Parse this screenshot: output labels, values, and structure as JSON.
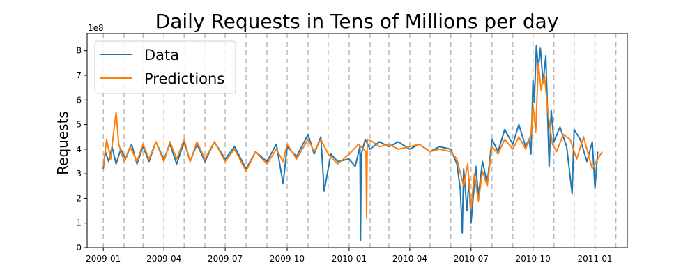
{
  "chart_data": {
    "type": "line",
    "title": "Daily Requests in Tens of Millions per day",
    "xlabel": "",
    "ylabel": "Requests",
    "y_offset_label": "1e8",
    "y_scale": 100000000,
    "xlim": [
      "2008-12-08",
      "2011-02-18"
    ],
    "ylim": [
      0,
      8.7
    ],
    "x_ticks": [
      "2009-01",
      "2009-04",
      "2009-07",
      "2009-10",
      "2010-01",
      "2010-04",
      "2010-07",
      "2010-10",
      "2011-01"
    ],
    "y_ticks": [
      0,
      1,
      2,
      3,
      4,
      5,
      6,
      7,
      8
    ],
    "grid": false,
    "month_markers": [
      "2009-01-01",
      "2009-02-01",
      "2009-03-01",
      "2009-04-01",
      "2009-05-01",
      "2009-06-01",
      "2009-07-01",
      "2009-08-01",
      "2009-09-01",
      "2009-10-01",
      "2009-11-01",
      "2009-12-01",
      "2010-01-01",
      "2010-02-01",
      "2010-03-01",
      "2010-04-01",
      "2010-05-01",
      "2010-06-01",
      "2010-07-01",
      "2010-08-01",
      "2010-09-01",
      "2010-10-01",
      "2010-11-01",
      "2010-12-01",
      "2011-01-01",
      "2011-02-01"
    ],
    "legend": {
      "placement": "top-left",
      "entries": [
        "Data",
        "Predictions"
      ]
    },
    "colors": {
      "Data": "#1f77b4",
      "Predictions": "#ff7f0e",
      "markers": "#bbbbbb"
    },
    "series": [
      {
        "name": "Data",
        "x": [
          "2009-01-01",
          "2009-01-04",
          "2009-01-09",
          "2009-01-14",
          "2009-01-20",
          "2009-01-27",
          "2009-02-03",
          "2009-02-12",
          "2009-02-20",
          "2009-03-01",
          "2009-03-10",
          "2009-03-20",
          "2009-04-01",
          "2009-04-10",
          "2009-04-20",
          "2009-05-01",
          "2009-05-10",
          "2009-05-20",
          "2009-06-01",
          "2009-06-15",
          "2009-07-01",
          "2009-07-15",
          "2009-08-01",
          "2009-08-15",
          "2009-09-01",
          "2009-09-15",
          "2009-09-25",
          "2009-10-01",
          "2009-10-15",
          "2009-11-01",
          "2009-11-10",
          "2009-11-20",
          "2009-11-25",
          "2009-12-05",
          "2009-12-15",
          "2010-01-01",
          "2010-01-10",
          "2010-01-17",
          "2010-01-18",
          "2010-01-19",
          "2010-01-25",
          "2010-02-01",
          "2010-02-15",
          "2010-03-01",
          "2010-03-15",
          "2010-04-01",
          "2010-04-15",
          "2010-05-01",
          "2010-05-15",
          "2010-06-01",
          "2010-06-10",
          "2010-06-15",
          "2010-06-18",
          "2010-06-20",
          "2010-06-25",
          "2010-06-28",
          "2010-07-01",
          "2010-07-05",
          "2010-07-08",
          "2010-07-12",
          "2010-07-18",
          "2010-07-25",
          "2010-08-01",
          "2010-08-10",
          "2010-08-20",
          "2010-09-01",
          "2010-09-10",
          "2010-09-20",
          "2010-09-25",
          "2010-09-28",
          "2010-10-01",
          "2010-10-03",
          "2010-10-06",
          "2010-10-09",
          "2010-10-12",
          "2010-10-16",
          "2010-10-20",
          "2010-10-25",
          "2010-10-28",
          "2010-11-01",
          "2010-11-10",
          "2010-11-20",
          "2010-11-28",
          "2010-12-01",
          "2010-12-10",
          "2010-12-20",
          "2010-12-28",
          "2011-01-01",
          "2011-01-05"
        ],
        "values": [
          3.2,
          3.9,
          3.5,
          4.1,
          3.4,
          4.0,
          3.6,
          4.2,
          3.4,
          4.1,
          3.5,
          4.3,
          3.6,
          4.2,
          3.4,
          4.3,
          3.5,
          4.2,
          3.5,
          4.3,
          3.6,
          4.1,
          3.2,
          3.9,
          3.5,
          4.2,
          2.6,
          4.1,
          3.7,
          4.6,
          3.8,
          4.5,
          2.3,
          3.8,
          3.5,
          3.6,
          3.3,
          4.1,
          0.3,
          3.8,
          4.4,
          4.0,
          4.3,
          4.1,
          4.3,
          4.0,
          4.2,
          3.9,
          4.1,
          4.0,
          3.4,
          2.4,
          0.6,
          3.2,
          1.5,
          2.8,
          1.0,
          2.3,
          3.3,
          2.1,
          3.5,
          2.6,
          4.4,
          3.9,
          4.8,
          4.2,
          5.0,
          4.1,
          4.4,
          3.8,
          6.8,
          5.9,
          8.2,
          7.3,
          8.1,
          6.7,
          7.8,
          3.3,
          5.6,
          4.3,
          4.9,
          4.1,
          2.2,
          4.8,
          4.4,
          3.5,
          4.3,
          2.4,
          3.9
        ]
      },
      {
        "name": "Predictions",
        "x": [
          "2009-01-01",
          "2009-01-06",
          "2009-01-12",
          "2009-01-16",
          "2009-01-20",
          "2009-01-24",
          "2009-02-01",
          "2009-02-10",
          "2009-02-20",
          "2009-03-01",
          "2009-03-10",
          "2009-03-20",
          "2009-04-01",
          "2009-04-10",
          "2009-04-20",
          "2009-05-01",
          "2009-05-10",
          "2009-05-20",
          "2009-06-01",
          "2009-06-15",
          "2009-07-01",
          "2009-07-15",
          "2009-08-01",
          "2009-08-15",
          "2009-09-01",
          "2009-09-15",
          "2009-09-25",
          "2009-10-01",
          "2009-10-15",
          "2009-11-01",
          "2009-11-10",
          "2009-11-20",
          "2009-12-01",
          "2009-12-15",
          "2010-01-01",
          "2010-01-15",
          "2010-01-26",
          "2010-01-27",
          "2010-01-28",
          "2010-02-05",
          "2010-02-15",
          "2010-03-01",
          "2010-03-15",
          "2010-04-01",
          "2010-04-15",
          "2010-05-01",
          "2010-05-15",
          "2010-06-01",
          "2010-06-10",
          "2010-06-20",
          "2010-06-26",
          "2010-07-01",
          "2010-07-06",
          "2010-07-12",
          "2010-07-18",
          "2010-07-25",
          "2010-08-01",
          "2010-08-10",
          "2010-08-20",
          "2010-09-01",
          "2010-09-10",
          "2010-09-20",
          "2010-09-28",
          "2010-10-01",
          "2010-10-05",
          "2010-10-09",
          "2010-10-13",
          "2010-10-18",
          "2010-10-24",
          "2010-10-30",
          "2010-11-05",
          "2010-11-15",
          "2010-11-25",
          "2010-12-05",
          "2010-12-15",
          "2010-12-28",
          "2011-01-05",
          "2011-01-12"
        ],
        "values": [
          3.3,
          4.4,
          3.6,
          4.6,
          5.5,
          4.2,
          3.5,
          4.1,
          3.5,
          4.2,
          3.6,
          4.3,
          3.5,
          4.3,
          3.6,
          4.4,
          3.5,
          4.3,
          3.6,
          4.3,
          3.5,
          4.0,
          3.1,
          3.9,
          3.4,
          4.0,
          3.5,
          4.2,
          3.6,
          4.4,
          3.9,
          4.4,
          3.8,
          3.4,
          3.8,
          4.2,
          3.9,
          1.2,
          4.4,
          4.3,
          4.1,
          4.2,
          4.0,
          4.1,
          4.2,
          3.9,
          4.0,
          3.9,
          3.6,
          2.5,
          3.4,
          1.6,
          3.0,
          1.9,
          3.1,
          2.5,
          4.1,
          3.8,
          4.4,
          4.0,
          4.5,
          4.0,
          4.6,
          5.8,
          4.7,
          7.5,
          6.4,
          7.0,
          5.3,
          4.2,
          3.9,
          4.6,
          4.4,
          3.6,
          4.5,
          3.2,
          3.6,
          3.9
        ]
      }
    ]
  }
}
